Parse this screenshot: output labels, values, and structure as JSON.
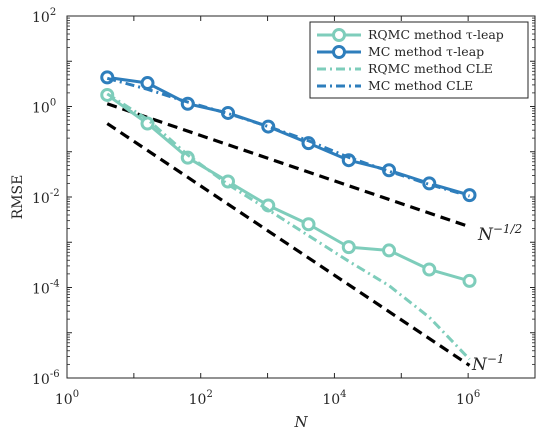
{
  "chart_data": {
    "type": "line",
    "x_scale": "log",
    "y_scale": "log",
    "xlim": [
      1,
      10000000.0
    ],
    "ylim": [
      1e-06,
      100
    ],
    "xlabel": "N",
    "ylabel": "RMSE",
    "x_ticks": [
      {
        "value": 1,
        "base": "10",
        "exp": "0"
      },
      {
        "value": 100,
        "base": "10",
        "exp": "2"
      },
      {
        "value": 10000,
        "base": "10",
        "exp": "4"
      },
      {
        "value": 1000000,
        "base": "10",
        "exp": "6"
      }
    ],
    "y_ticks": [
      {
        "value": 1e-06,
        "base": "10",
        "exp": "-6"
      },
      {
        "value": 0.0001,
        "base": "10",
        "exp": "-4"
      },
      {
        "value": 0.01,
        "base": "10",
        "exp": "-2"
      },
      {
        "value": 1,
        "base": "10",
        "exp": "0"
      },
      {
        "value": 100,
        "base": "10",
        "exp": "2"
      }
    ],
    "grid": false,
    "legend_position": "top-right",
    "series": [
      {
        "name": "RQMC method τ-leap",
        "color": "#7ecdbb",
        "style": "solid-marker",
        "x": [
          4,
          16,
          64,
          256,
          1024,
          4096,
          16384,
          65536,
          262144,
          1048576
        ],
        "y": [
          1.8,
          0.42,
          0.074,
          0.022,
          0.0065,
          0.0025,
          0.00078,
          0.00066,
          0.00025,
          0.00014
        ]
      },
      {
        "name": "MC method τ-leap",
        "color": "#2e7ebc",
        "style": "solid-marker",
        "x": [
          4,
          16,
          64,
          256,
          1024,
          4096,
          16384,
          65536,
          262144,
          1048576
        ],
        "y": [
          4.4,
          3.3,
          1.15,
          0.72,
          0.36,
          0.155,
          0.065,
          0.039,
          0.02,
          0.011
        ]
      },
      {
        "name": "RQMC method CLE",
        "color": "#7ecdbb",
        "style": "dashdot",
        "x": [
          4,
          16,
          64,
          256,
          1024,
          4096,
          16384,
          65536,
          262144,
          1048576
        ],
        "y": [
          1.9,
          0.52,
          0.085,
          0.019,
          0.0052,
          0.0014,
          0.00038,
          0.00011,
          2.2e-05,
          2.6e-06
        ]
      },
      {
        "name": "MC method CLE",
        "color": "#2e7ebc",
        "style": "dashdot",
        "x": [
          4,
          16,
          64,
          256,
          1024,
          4096,
          16384,
          65536,
          262144,
          1048576
        ],
        "y": [
          4.2,
          2.4,
          1.25,
          0.7,
          0.36,
          0.175,
          0.075,
          0.037,
          0.019,
          0.0105
        ]
      }
    ],
    "reference_lines": [
      {
        "label_base": "N",
        "label_exp": "−1/2",
        "color": "#000000",
        "x": [
          4,
          1048576
        ],
        "y": [
          1.15,
          0.0022
        ]
      },
      {
        "label_base": "N",
        "label_exp": "−1",
        "color": "#000000",
        "x": [
          4,
          1048576
        ],
        "y": [
          0.42,
          1.9e-06
        ]
      }
    ]
  }
}
